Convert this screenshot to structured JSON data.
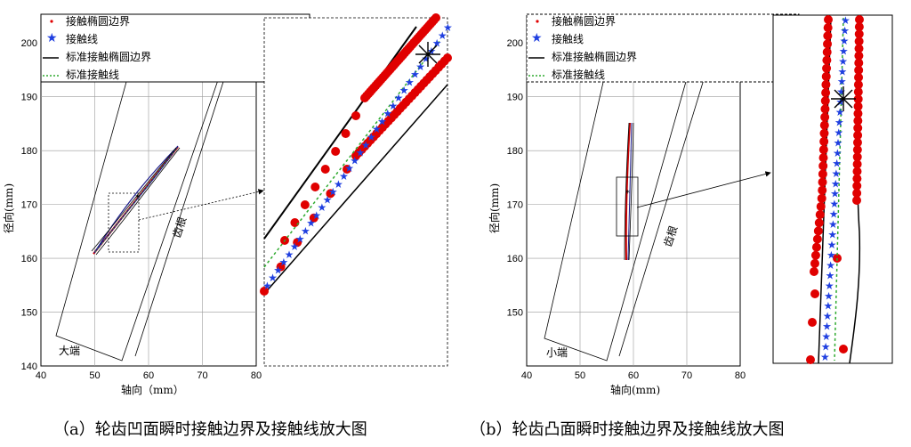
{
  "chart_data": [
    {
      "type": "scatter",
      "xlabel": "轴向（mm）",
      "ylabel": "径向(mm)",
      "xlim": [
        40,
        80
      ],
      "ylim": [
        140,
        205
      ],
      "xticks": [
        "40",
        "50",
        "60",
        "70",
        "80"
      ],
      "yticks": [
        "140",
        "150",
        "160",
        "170",
        "180",
        "190",
        "200"
      ],
      "grid": true,
      "legend": [
        "接触椭圆边界",
        "接触线",
        "标准接触椭圆边界",
        "标准接触线"
      ],
      "legend_placement": "top-left",
      "annotations": [
        "大端",
        "齿根"
      ],
      "series": [
        {
          "name": "接触椭圆边界",
          "x": [
            50,
            52,
            54,
            56,
            58,
            60,
            62,
            64,
            65,
            63,
            61,
            59,
            57,
            55,
            53,
            51
          ],
          "y": [
            160.5,
            162.5,
            164.8,
            167.2,
            169.8,
            172.2,
            174.8,
            177.5,
            180.5,
            179.5,
            177,
            174.2,
            171.6,
            169,
            166.4,
            163.8
          ]
        },
        {
          "name": "接触线",
          "x": [
            50.5,
            52.5,
            54.5,
            56.5,
            58.5,
            60.5,
            62.5,
            64.5
          ],
          "y": [
            161,
            163.4,
            165.8,
            168.3,
            170.9,
            173.4,
            175.9,
            178.9
          ]
        }
      ],
      "caption": "（a）轮齿凹面瞬时接触边界及接触线放大图"
    },
    {
      "type": "scatter",
      "xlabel": "轴向(mm)",
      "ylabel": "径向(mm)",
      "xlim": [
        40,
        80
      ],
      "ylim": [
        140,
        205
      ],
      "xticks": [
        "40",
        "50",
        "60",
        "70",
        "80"
      ],
      "yticks": [
        "150",
        "160",
        "170",
        "180",
        "190",
        "200"
      ],
      "grid": true,
      "legend": [
        "接触椭圆边界",
        "接触线",
        "标准接触椭圆边界",
        "标准接触线"
      ],
      "legend_placement": "top-left",
      "annotations": [
        "小端",
        "齿根"
      ],
      "series": [
        {
          "name": "接触椭圆边界",
          "x": [
            58.3,
            58.4,
            58.5,
            58.6,
            58.8,
            59.0,
            59.3,
            59.5,
            59.4,
            59.2
          ],
          "y": [
            159.5,
            163,
            166.5,
            170,
            173.5,
            177,
            180.5,
            184.5,
            170,
            162
          ]
        },
        {
          "name": "接触线",
          "x": [
            58.8,
            58.9,
            59.0,
            59.1,
            59.2,
            59.3
          ],
          "y": [
            160,
            165,
            170,
            175,
            180,
            184
          ]
        }
      ],
      "caption": "（b）轮齿凸面瞬时接触边界及接触线放大图"
    }
  ]
}
